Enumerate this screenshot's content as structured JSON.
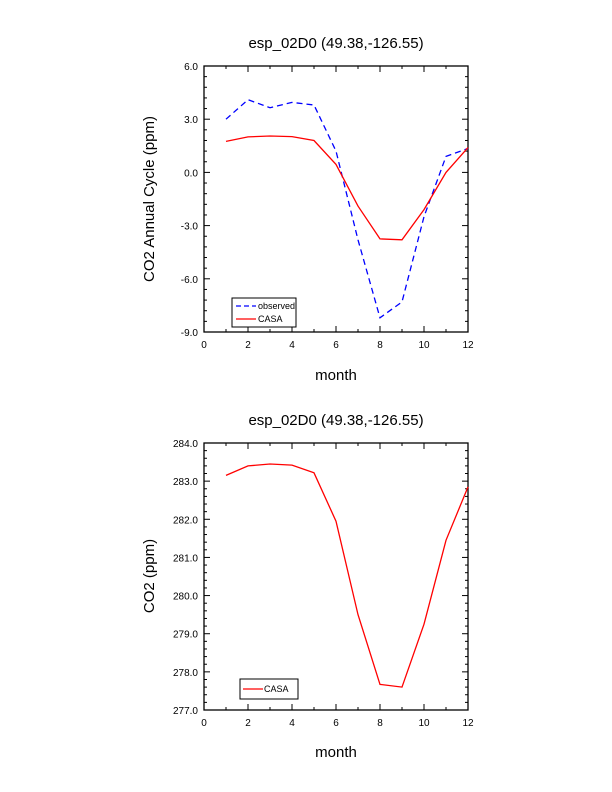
{
  "chart_data": [
    {
      "type": "line",
      "title": "esp_02D0 (49.38,-126.55)",
      "xlabel": "month",
      "ylabel": "CO2 Annual Cycle (ppm)",
      "xlim": [
        0,
        12
      ],
      "ylim": [
        -9,
        6
      ],
      "xticks": [
        0,
        2,
        4,
        6,
        8,
        10,
        12
      ],
      "xtick_labels": [
        "0",
        "2",
        "4",
        "6",
        "8",
        "10",
        "12"
      ],
      "yticks": [
        -9,
        -6,
        -3,
        0,
        3,
        6
      ],
      "ytick_labels": [
        "-9.0",
        "-6.0",
        "-3.0",
        "0.0",
        "3.0",
        "6.0"
      ],
      "grid": false,
      "legend_position": "bottom-left",
      "x": [
        1,
        2,
        3,
        4,
        5,
        6,
        7,
        8,
        9,
        10,
        11,
        12
      ],
      "series": [
        {
          "name": "observed",
          "color": "#0000ff",
          "dash": "dashed",
          "values": [
            3.0,
            4.1,
            3.65,
            3.95,
            3.8,
            1.2,
            -3.8,
            -8.2,
            -7.3,
            -2.5,
            0.9,
            1.35
          ]
        },
        {
          "name": "CASA",
          "color": "#ff0000",
          "dash": "solid",
          "values": [
            1.75,
            2.0,
            2.05,
            2.02,
            1.8,
            0.45,
            -1.9,
            -3.75,
            -3.8,
            -2.1,
            0.0,
            1.4
          ]
        }
      ]
    },
    {
      "type": "line",
      "title": "esp_02D0 (49.38,-126.55)",
      "xlabel": "month",
      "ylabel": "CO2 (ppm)",
      "xlim": [
        0,
        12
      ],
      "ylim": [
        277,
        284
      ],
      "xticks": [
        0,
        2,
        4,
        6,
        8,
        10,
        12
      ],
      "xtick_labels": [
        "0",
        "2",
        "4",
        "6",
        "8",
        "10",
        "12"
      ],
      "yticks": [
        277,
        278,
        279,
        280,
        281,
        282,
        283,
        284
      ],
      "ytick_labels": [
        "277.0",
        "278.0",
        "279.0",
        "280.0",
        "281.0",
        "282.0",
        "283.0",
        "284.0"
      ],
      "grid": false,
      "legend_position": "bottom-left",
      "x": [
        1,
        2,
        3,
        4,
        5,
        6,
        7,
        8,
        9,
        10,
        11,
        12
      ],
      "series": [
        {
          "name": "CASA",
          "color": "#ff0000",
          "dash": "solid",
          "values": [
            283.15,
            283.4,
            283.45,
            283.42,
            283.22,
            281.95,
            279.5,
            277.67,
            277.6,
            279.25,
            281.45,
            282.85
          ]
        }
      ]
    }
  ]
}
